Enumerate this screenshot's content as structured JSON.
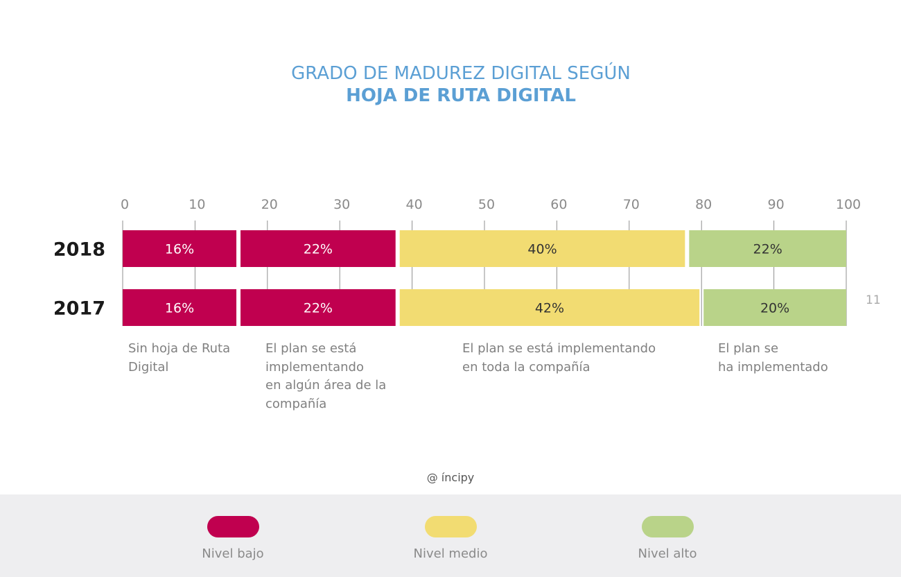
{
  "chart_data": {
    "type": "bar",
    "orientation": "horizontal",
    "stacked": true,
    "title": "GRADO DE MADUREZ DIGITAL SEGÚN",
    "subtitle": "HOJA DE RUTA DIGITAL",
    "xlim": [
      0,
      100
    ],
    "xticks": [
      "0",
      "10",
      "20",
      "30",
      "40",
      "50",
      "60",
      "70",
      "80",
      "90",
      "100"
    ],
    "categories": [
      "2018",
      "2017"
    ],
    "series": [
      {
        "values": [
          16,
          16
        ],
        "labels": [
          "16%",
          "16%"
        ],
        "color": "#c0004f",
        "text_color": "#ffffff"
      },
      {
        "values": [
          22,
          22
        ],
        "labels": [
          "22%",
          "22%"
        ],
        "color": "#c0004f",
        "text_color": "#ffffff"
      },
      {
        "values": [
          40,
          42
        ],
        "labels": [
          "40%",
          "42%"
        ],
        "color": "#f2dc72",
        "text_color": "#333333"
      },
      {
        "values": [
          22,
          20
        ],
        "labels": [
          "22%",
          "20%"
        ],
        "color": "#b9d389",
        "text_color": "#333333"
      }
    ],
    "segment_descriptions": [
      "Sin hoja de Ruta\nDigital",
      "El plan se está\nimplementando\nen algún área de la\ncompañía",
      "El plan se está implementando\nen toda la compañía",
      "El plan se\nha implementado"
    ],
    "legend": [
      {
        "name": "Nivel bajo",
        "color": "#c0004f"
      },
      {
        "name": "Nivel medio",
        "color": "#f2dc72"
      },
      {
        "name": "Nivel alto",
        "color": "#b9d389"
      }
    ],
    "grid": true
  },
  "page_number": "11",
  "credit": "@ íncipy"
}
